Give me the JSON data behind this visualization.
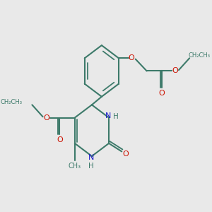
{
  "bg_color": "#e9e9e9",
  "bond_color": "#3d7a6a",
  "nitrogen_color": "#1a1acc",
  "oxygen_color": "#cc1100",
  "lw": 1.5,
  "fig_w": 3.0,
  "fig_h": 3.0,
  "dpi": 100,
  "xlim": [
    -1.5,
    8.5
  ],
  "ylim": [
    -4.5,
    4.5
  ]
}
